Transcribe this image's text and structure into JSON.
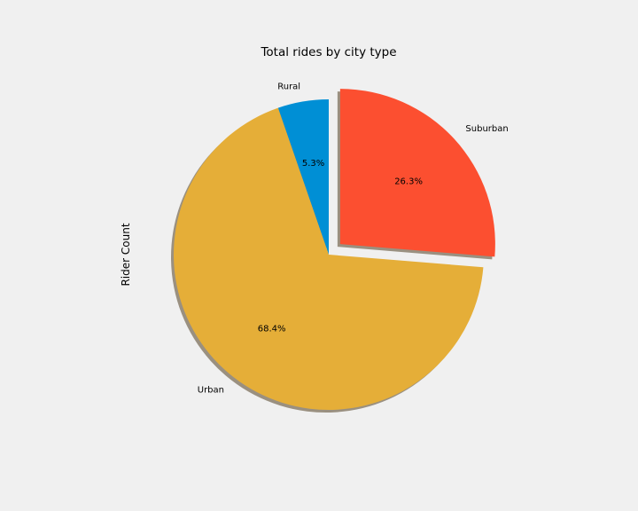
{
  "chart_data": {
    "type": "pie",
    "title": "Total rides by city type",
    "ylabel": "Rider Count",
    "start_angle_deg": 90,
    "direction": "counterclockwise",
    "shadow": true,
    "slices": [
      {
        "label": "Rural",
        "value": 5.3,
        "pct_text": "5.3%",
        "color": "#008fd5",
        "explode": 0
      },
      {
        "label": "Urban",
        "value": 68.4,
        "pct_text": "68.4%",
        "color": "#e5ae38",
        "explode": 0
      },
      {
        "label": "Suburban",
        "value": 26.3,
        "pct_text": "26.3%",
        "color": "#fc4f30",
        "explode": 0.1
      }
    ],
    "shadow_color": "#9a9080",
    "edge_color": "#f0f0f0"
  }
}
